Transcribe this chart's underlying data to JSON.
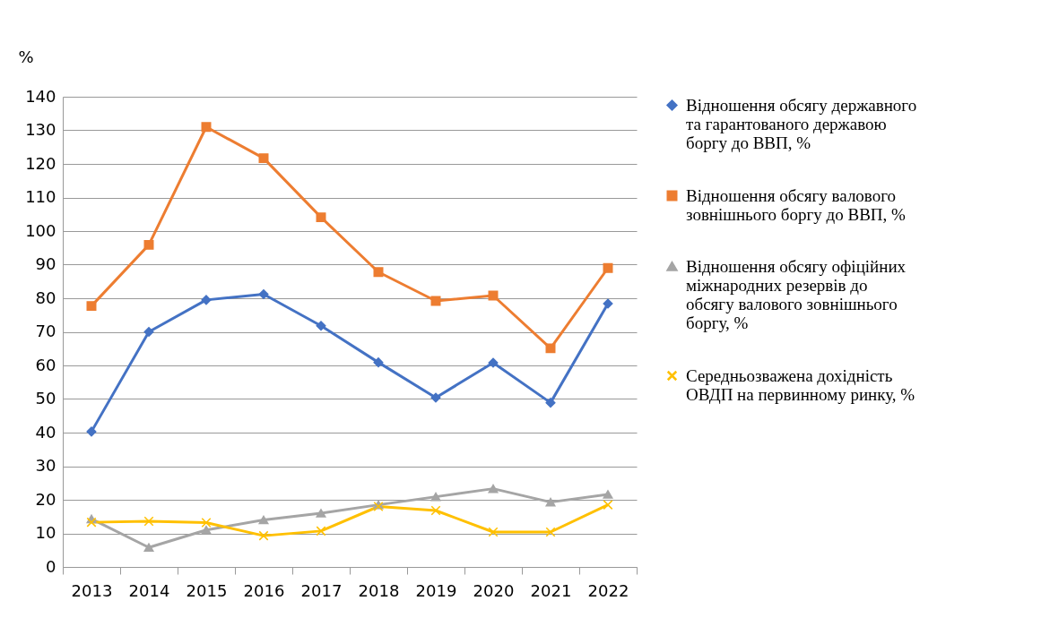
{
  "chart_data": {
    "type": "line",
    "ylabel": "%",
    "categories": [
      "2013",
      "2014",
      "2015",
      "2016",
      "2017",
      "2018",
      "2019",
      "2020",
      "2021",
      "2022"
    ],
    "series": [
      {
        "name": "Відношення обсягу державного та гарантованого державою боргу до ВВП, %",
        "color": "#4472c4",
        "marker": "diamond",
        "values": [
          40.3,
          70,
          79.5,
          81.2,
          71.8,
          60.9,
          50.4,
          60.8,
          48.9,
          78.4
        ]
      },
      {
        "name": "Відношення обсягу валового зовнішнього боргу до ВВП, %",
        "color": "#ed7d31",
        "marker": "square",
        "values": [
          77.7,
          95.9,
          131,
          121.7,
          104.1,
          87.8,
          79.2,
          80.8,
          65.1,
          89
        ]
      },
      {
        "name": "Відношення обсягу офіційних міжнародних резервів до обсягу валового зовнішнього боргу, %",
        "color": "#a5a5a5",
        "marker": "triangle",
        "values": [
          14.3,
          5.8,
          11,
          14,
          16,
          18.5,
          20.9,
          23.3,
          19.3,
          21.6
        ]
      },
      {
        "name": "Середньозважена дохідність ОВДП на первинному ринку, %",
        "color": "#ffc000",
        "marker": "cross",
        "values": [
          13.3,
          13.6,
          13.2,
          9.3,
          10.7,
          18,
          16.8,
          10.4,
          10.4,
          18.5
        ]
      }
    ],
    "ylim": [
      0,
      140
    ],
    "yticks": [
      0,
      10,
      20,
      30,
      40,
      50,
      60,
      70,
      80,
      90,
      100,
      110,
      120,
      130,
      140
    ],
    "grid": "y",
    "legend": "right",
    "line_style": "solid"
  }
}
